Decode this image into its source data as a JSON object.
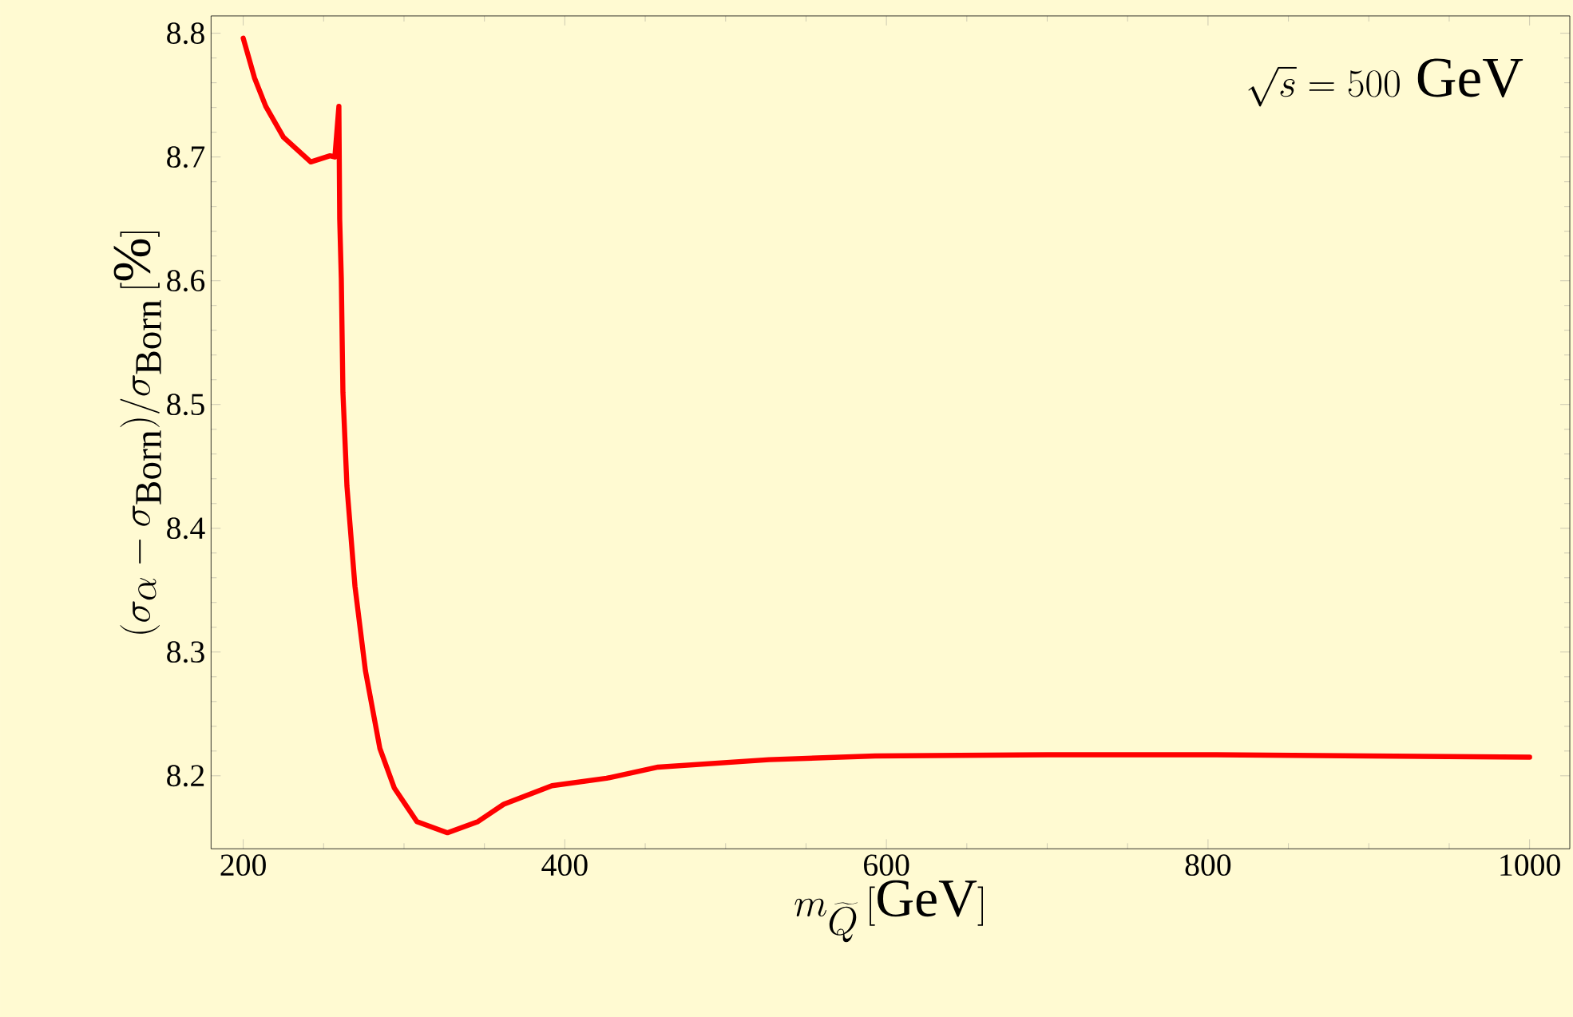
{
  "chart_data": {
    "type": "line",
    "xlabel": "m_{\\widetilde{Q}}\\,[\\mathrm{GeV}]",
    "ylabel": "(\\sigma_{\\alpha}-\\sigma_{\\mathrm{Born}})/\\sigma_{\\mathrm{Born}}\\,[\\%]",
    "annotations": [
      "\\sqrt{s}=500~\\mathrm{GeV}"
    ],
    "xlim": [
      180,
      1025
    ],
    "ylim": [
      8.141,
      8.814
    ],
    "xticks": [
      200,
      400,
      600,
      800,
      1000
    ],
    "yticks": [
      8.2,
      8.3,
      8.4,
      8.5,
      8.6,
      8.7,
      8.8
    ],
    "grid": false,
    "marker": "none",
    "line_style": "solid",
    "series": [
      {
        "color": "#ff0000",
        "x": [
          200,
          207,
          214,
          225,
          242,
          254,
          257,
          259.5,
          260,
          261,
          262,
          264.5,
          269.5,
          276,
          285,
          294,
          308,
          327,
          346,
          362,
          392,
          426,
          458,
          527,
          593,
          700,
          800,
          900,
          1000
        ],
        "values": [
          8.796,
          8.764,
          8.741,
          8.716,
          8.696,
          8.701,
          8.7,
          8.741,
          8.65,
          8.602,
          8.51,
          8.434,
          8.353,
          8.285,
          8.222,
          8.19,
          8.163,
          8.154,
          8.163,
          8.177,
          8.192,
          8.198,
          8.207,
          8.213,
          8.216,
          8.217,
          8.217,
          8.216,
          8.215
        ]
      }
    ]
  }
}
